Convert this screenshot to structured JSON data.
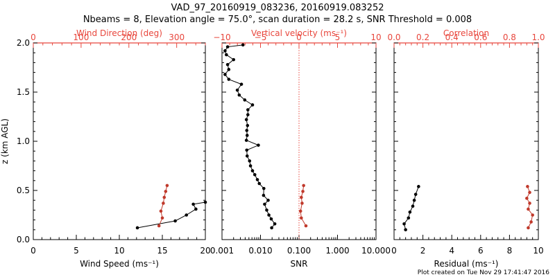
{
  "title_line1": "VAD_97_20160919_083236, 20160919.083252",
  "title_line2": "Nbeams = 8, Elevation angle = 75.0°, scan duration = 28.2 s, SNR Threshold = 0.008",
  "footer": "Plot created on Tue Nov 29 17:41:47 2016",
  "colors": {
    "primary": "#000000",
    "secondary": "#c0392b",
    "axis_red": "#e8463c"
  },
  "chart_data": [
    {
      "type": "line",
      "ylabel": "z (km AGL)",
      "ylim": [
        0,
        2
      ],
      "yticks": [
        "0.0",
        "0.5",
        "1.0",
        "1.5",
        "2.0"
      ],
      "bottom_axis": {
        "label": "Wind Speed (ms⁻¹)",
        "lim": [
          0,
          20
        ],
        "ticks": [
          "0",
          "5",
          "10",
          "15",
          "20"
        ]
      },
      "top_axis": {
        "label": "Wind Direction (deg)",
        "lim": [
          0,
          360
        ],
        "ticks": [
          "0",
          "100",
          "200",
          "300"
        ]
      },
      "series": [
        {
          "axis": "bottom",
          "color": "black",
          "marker": "circle",
          "x": [
            12.1,
            16.5,
            17.8,
            18.9,
            18.6,
            20.0
          ],
          "y": [
            0.12,
            0.19,
            0.25,
            0.31,
            0.36,
            0.38
          ]
        },
        {
          "axis": "top",
          "color": "red",
          "marker": "circle",
          "x": [
            263,
            270,
            267,
            272,
            274,
            277,
            280
          ],
          "y": [
            0.14,
            0.22,
            0.29,
            0.37,
            0.43,
            0.49,
            0.55
          ]
        }
      ]
    },
    {
      "type": "line",
      "ylim": [
        0,
        2
      ],
      "bottom_axis": {
        "label": "SNR",
        "scale": "log",
        "lim": [
          0.001,
          10
        ],
        "ticks": [
          "0.001",
          "0.010",
          "0.100",
          "1.000",
          "10.000"
        ]
      },
      "top_axis": {
        "label": "Vertical velocity (ms⁻¹)",
        "lim": [
          -10,
          10
        ],
        "ticks": [
          "−10",
          "−5",
          "0",
          "5",
          "10"
        ],
        "zero_line": true
      },
      "series": [
        {
          "axis": "bottom",
          "color": "black",
          "marker": "circle",
          "x": [
            0.0195,
            0.0235,
            0.019,
            0.0165,
            0.0145,
            0.0128,
            0.0158,
            0.012,
            0.0122,
            0.0093,
            0.0083,
            0.0071,
            0.0062,
            0.0055,
            0.0052,
            0.0045,
            0.0044,
            0.0088,
            0.0043,
            0.0045,
            0.0044,
            0.0046,
            0.0043,
            0.0047,
            0.0047,
            0.0062,
            0.0039,
            0.0028,
            0.0025,
            0.0032,
            0.0015,
            0.0012,
            0.0015,
            0.0014,
            0.002,
            0.0013,
            0.0012,
            0.0014,
            0.0035
          ],
          "y": [
            0.12,
            0.16,
            0.21,
            0.25,
            0.3,
            0.36,
            0.4,
            0.45,
            0.52,
            0.57,
            0.61,
            0.66,
            0.7,
            0.75,
            0.8,
            0.85,
            0.91,
            0.96,
            1.01,
            1.06,
            1.11,
            1.16,
            1.22,
            1.27,
            1.32,
            1.37,
            1.42,
            1.47,
            1.52,
            1.58,
            1.63,
            1.68,
            1.73,
            1.78,
            1.83,
            1.88,
            1.92,
            1.96,
            1.98
          ]
        },
        {
          "axis": "top",
          "color": "red",
          "marker": "circle",
          "x": [
            0.9,
            0.3,
            0.2,
            0.4,
            0.3,
            0.5,
            0.6
          ],
          "y": [
            0.14,
            0.22,
            0.29,
            0.37,
            0.43,
            0.49,
            0.55
          ]
        }
      ]
    },
    {
      "type": "line",
      "ylim": [
        0,
        2
      ],
      "bottom_axis": {
        "label": "Residual (ms⁻¹)",
        "lim": [
          0,
          10
        ],
        "ticks": [
          "0",
          "2",
          "4",
          "6",
          "8",
          "10"
        ]
      },
      "top_axis": {
        "label": "Correlation",
        "lim": [
          0,
          1
        ],
        "ticks": [
          "0.0",
          "0.2",
          "0.4",
          "0.6",
          "0.8",
          "1.0"
        ]
      },
      "series": [
        {
          "axis": "bottom",
          "color": "black",
          "marker": "circle",
          "x": [
            0.8,
            0.7,
            1.0,
            1.1,
            1.3,
            1.4,
            1.5,
            1.7
          ],
          "y": [
            0.1,
            0.16,
            0.22,
            0.28,
            0.34,
            0.4,
            0.46,
            0.54
          ]
        },
        {
          "axis": "top",
          "color": "red",
          "marker": "circle",
          "x": [
            0.93,
            0.95,
            0.96,
            0.93,
            0.94,
            0.92,
            0.94,
            0.925
          ],
          "y": [
            0.12,
            0.18,
            0.25,
            0.31,
            0.37,
            0.42,
            0.48,
            0.54
          ]
        }
      ]
    }
  ]
}
